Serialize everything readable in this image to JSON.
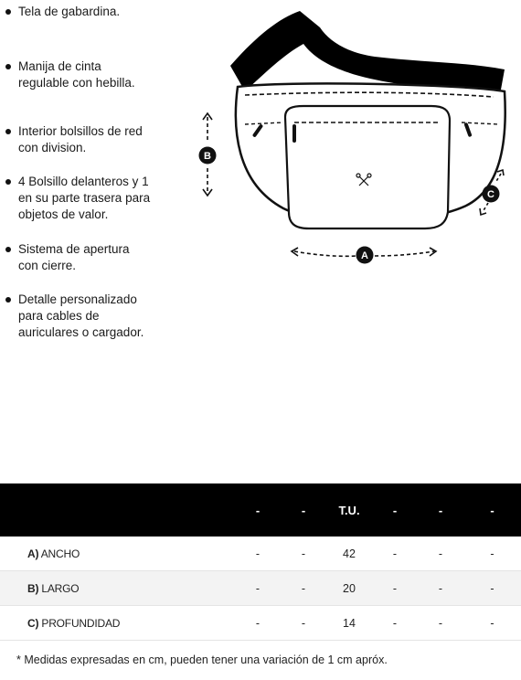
{
  "features": [
    {
      "lines": [
        "Tela de gabardina."
      ]
    },
    {
      "lines": [
        "Manija de cinta",
        "regulable con hebilla."
      ]
    },
    {
      "lines": [
        "Interior bolsillos de red",
        "con division."
      ]
    },
    {
      "lines": [
        "4 Bolsillo delanteros y 1",
        "en su parte trasera para",
        "objetos de valor."
      ]
    },
    {
      "lines": [
        "Sistema de apertura",
        "con cierre."
      ]
    },
    {
      "lines": [
        "Detalle personalizado",
        "para cables de",
        "auriculares o cargador."
      ]
    }
  ],
  "diagram": {
    "labels": {
      "a": "A",
      "b": "B",
      "c": "C"
    },
    "colors": {
      "strap": "#000000",
      "line": "#111111"
    }
  },
  "table": {
    "headers": [
      "",
      "-",
      "-",
      "T.U.",
      "-",
      "-",
      "-"
    ],
    "rows": [
      {
        "key": "A)",
        "name": "ANCHO",
        "values": [
          "-",
          "-",
          "42",
          "-",
          "-",
          "-"
        ]
      },
      {
        "key": "B)",
        "name": "LARGO",
        "values": [
          "-",
          "-",
          "20",
          "-",
          "-",
          "-"
        ]
      },
      {
        "key": "C)",
        "name": "PROFUNDIDAD",
        "values": [
          "-",
          "-",
          "14",
          "-",
          "-",
          "-"
        ]
      }
    ]
  },
  "note": "* Medidas expresadas en cm, pueden tener una variación de 1 cm apróx."
}
